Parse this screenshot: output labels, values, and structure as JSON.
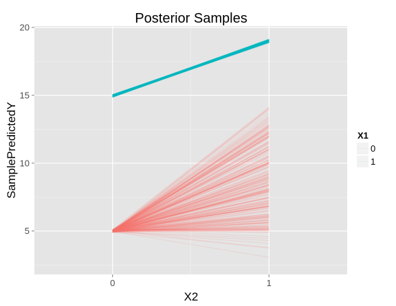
{
  "chart_data": {
    "type": "line",
    "title": "Posterior Samples",
    "xlabel": "X2",
    "ylabel": "SamplePredictedY",
    "x": [
      0,
      1
    ],
    "x_ticks": [
      "0",
      "1"
    ],
    "xlim": [
      -0.5,
      1.5
    ],
    "y_ticks": [
      "5",
      "10",
      "15",
      "20"
    ],
    "ylim": [
      1.8,
      20.1
    ],
    "grid": true,
    "legend": {
      "title": "X1",
      "position": "right",
      "entries": [
        "0",
        "1"
      ]
    },
    "series": [
      {
        "name": "0",
        "color": "#F8766D",
        "sample_count": 300,
        "start_y_range": [
          4.9,
          5.1
        ],
        "end_y_range": [
          2.5,
          14.4
        ],
        "end_y_typical": [
          5.0,
          13.0
        ]
      },
      {
        "name": "1",
        "color": "#00BFC4",
        "sample_count": 300,
        "start_y_range": [
          14.8,
          15.1
        ],
        "end_y_range": [
          18.8,
          19.2
        ]
      }
    ],
    "panel_background": "#E5E5E5",
    "grid_color": "#FFFFFF"
  }
}
